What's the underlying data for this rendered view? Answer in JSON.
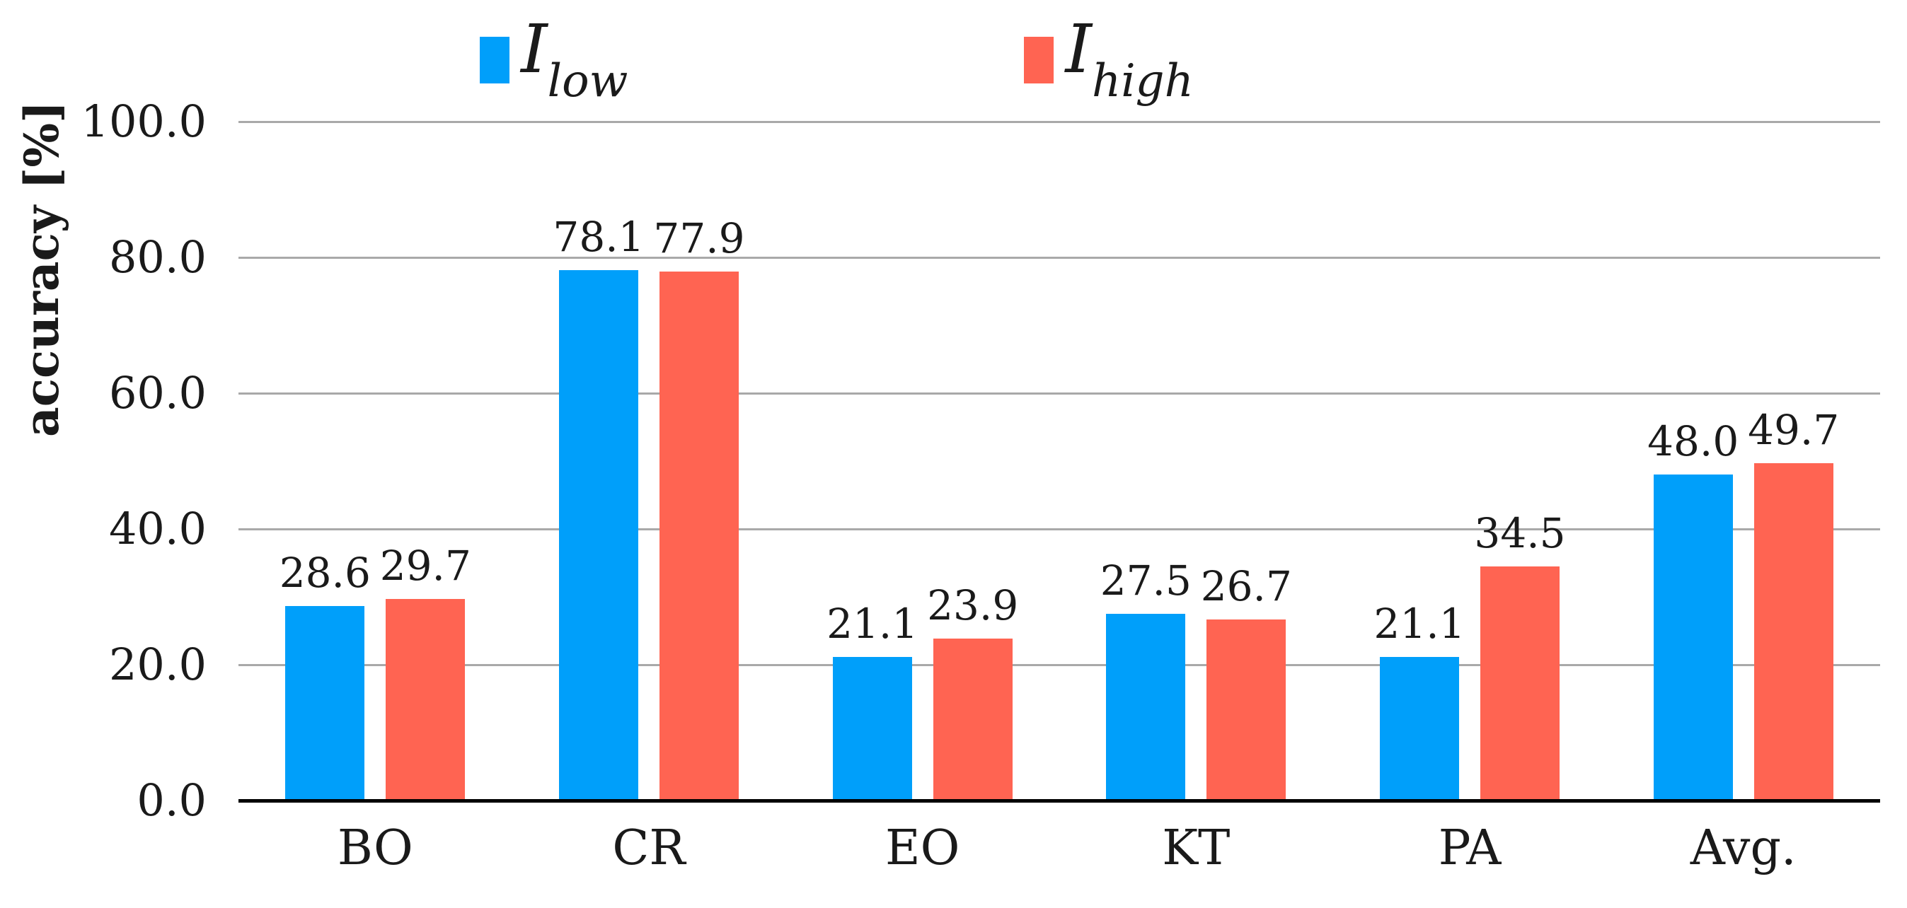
{
  "figure": {
    "background": "#ffffff"
  },
  "chart_data": {
    "type": "bar",
    "title": "",
    "categories": [
      "BO",
      "CR",
      "EO",
      "KT",
      "PA",
      "Avg."
    ],
    "series": [
      {
        "name": "I_low",
        "label_main": "I",
        "label_sub": "low",
        "color": "#009FFA",
        "values": [
          28.6,
          78.1,
          21.1,
          27.5,
          21.1,
          48.0
        ],
        "value_labels": [
          "28.6",
          "78.1",
          "21.1",
          "27.5",
          "21.1",
          "48.0"
        ]
      },
      {
        "name": "I_high",
        "label_main": "I",
        "label_sub": "high",
        "color": "#FF6452",
        "values": [
          29.7,
          77.9,
          23.9,
          26.7,
          34.5,
          49.7
        ],
        "value_labels": [
          "29.7",
          "77.9",
          "23.9",
          "26.7",
          "34.5",
          "49.7"
        ]
      }
    ],
    "xlabel": "",
    "ylabel": "accuracy [%]",
    "ylim": [
      0,
      100
    ],
    "yticks": [
      0,
      20,
      40,
      60,
      80,
      100
    ],
    "ytick_labels": [
      "0.0",
      "20.0",
      "40.0",
      "60.0",
      "80.0",
      "100.0"
    ],
    "grid": true,
    "legend_position": "top",
    "value_labels": true,
    "colors": {
      "gridline": "#A9A9A9",
      "axis": "#000000",
      "text": "#1a1a1a"
    }
  }
}
